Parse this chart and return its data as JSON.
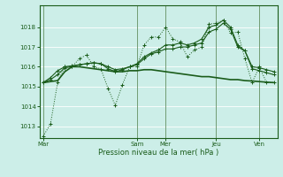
{
  "background_color": "#cceee8",
  "grid_color": "#ffffff",
  "line_color": "#1a5c1a",
  "xlabel": "Pression niveau de la mer( hPa )",
  "ylim": [
    1012.4,
    1019.1
  ],
  "yticks": [
    1013,
    1014,
    1015,
    1016,
    1017,
    1018
  ],
  "xtick_labels": [
    "Mar",
    "Sam",
    "Mer",
    "Jeu",
    "Ven"
  ],
  "xtick_positions": [
    0,
    13,
    17,
    24,
    30
  ],
  "total_points": 33,
  "series1": [
    1012.5,
    1013.1,
    1015.2,
    1016.0,
    1016.0,
    1016.4,
    1016.6,
    1016.0,
    1015.9,
    1014.9,
    1014.05,
    1015.1,
    1016.0,
    1016.0,
    1017.1,
    1017.5,
    1017.5,
    1018.0,
    1017.4,
    1017.25,
    1016.5,
    1016.85,
    1017.0,
    1018.15,
    1018.2,
    1018.35,
    1017.7,
    1017.75,
    1016.4,
    1015.2,
    1016.0,
    1015.2,
    1015.2
  ],
  "series2": [
    1015.2,
    1015.25,
    1015.3,
    1015.75,
    1016.0,
    1016.0,
    1015.95,
    1015.9,
    1015.85,
    1015.8,
    1015.75,
    1015.75,
    1015.8,
    1015.8,
    1015.85,
    1015.85,
    1015.8,
    1015.75,
    1015.7,
    1015.65,
    1015.6,
    1015.55,
    1015.5,
    1015.5,
    1015.45,
    1015.4,
    1015.35,
    1015.35,
    1015.3,
    1015.28,
    1015.25,
    1015.22,
    1015.2
  ],
  "series3": [
    1015.2,
    1015.35,
    1015.6,
    1015.95,
    1016.0,
    1016.1,
    1016.15,
    1016.2,
    1016.15,
    1015.9,
    1015.75,
    1015.85,
    1016.0,
    1016.1,
    1016.4,
    1016.65,
    1016.75,
    1016.9,
    1016.9,
    1017.0,
    1017.0,
    1017.1,
    1017.2,
    1017.75,
    1017.9,
    1018.2,
    1017.9,
    1017.0,
    1016.8,
    1015.9,
    1015.8,
    1015.7,
    1015.6
  ],
  "series4": [
    1015.2,
    1015.45,
    1015.8,
    1016.0,
    1016.05,
    1016.1,
    1016.15,
    1016.2,
    1016.15,
    1016.0,
    1015.85,
    1015.9,
    1016.0,
    1016.15,
    1016.5,
    1016.7,
    1016.85,
    1017.1,
    1017.1,
    1017.2,
    1017.1,
    1017.2,
    1017.4,
    1018.0,
    1018.1,
    1018.35,
    1018.0,
    1017.1,
    1016.8,
    1016.0,
    1015.95,
    1015.85,
    1015.75
  ]
}
